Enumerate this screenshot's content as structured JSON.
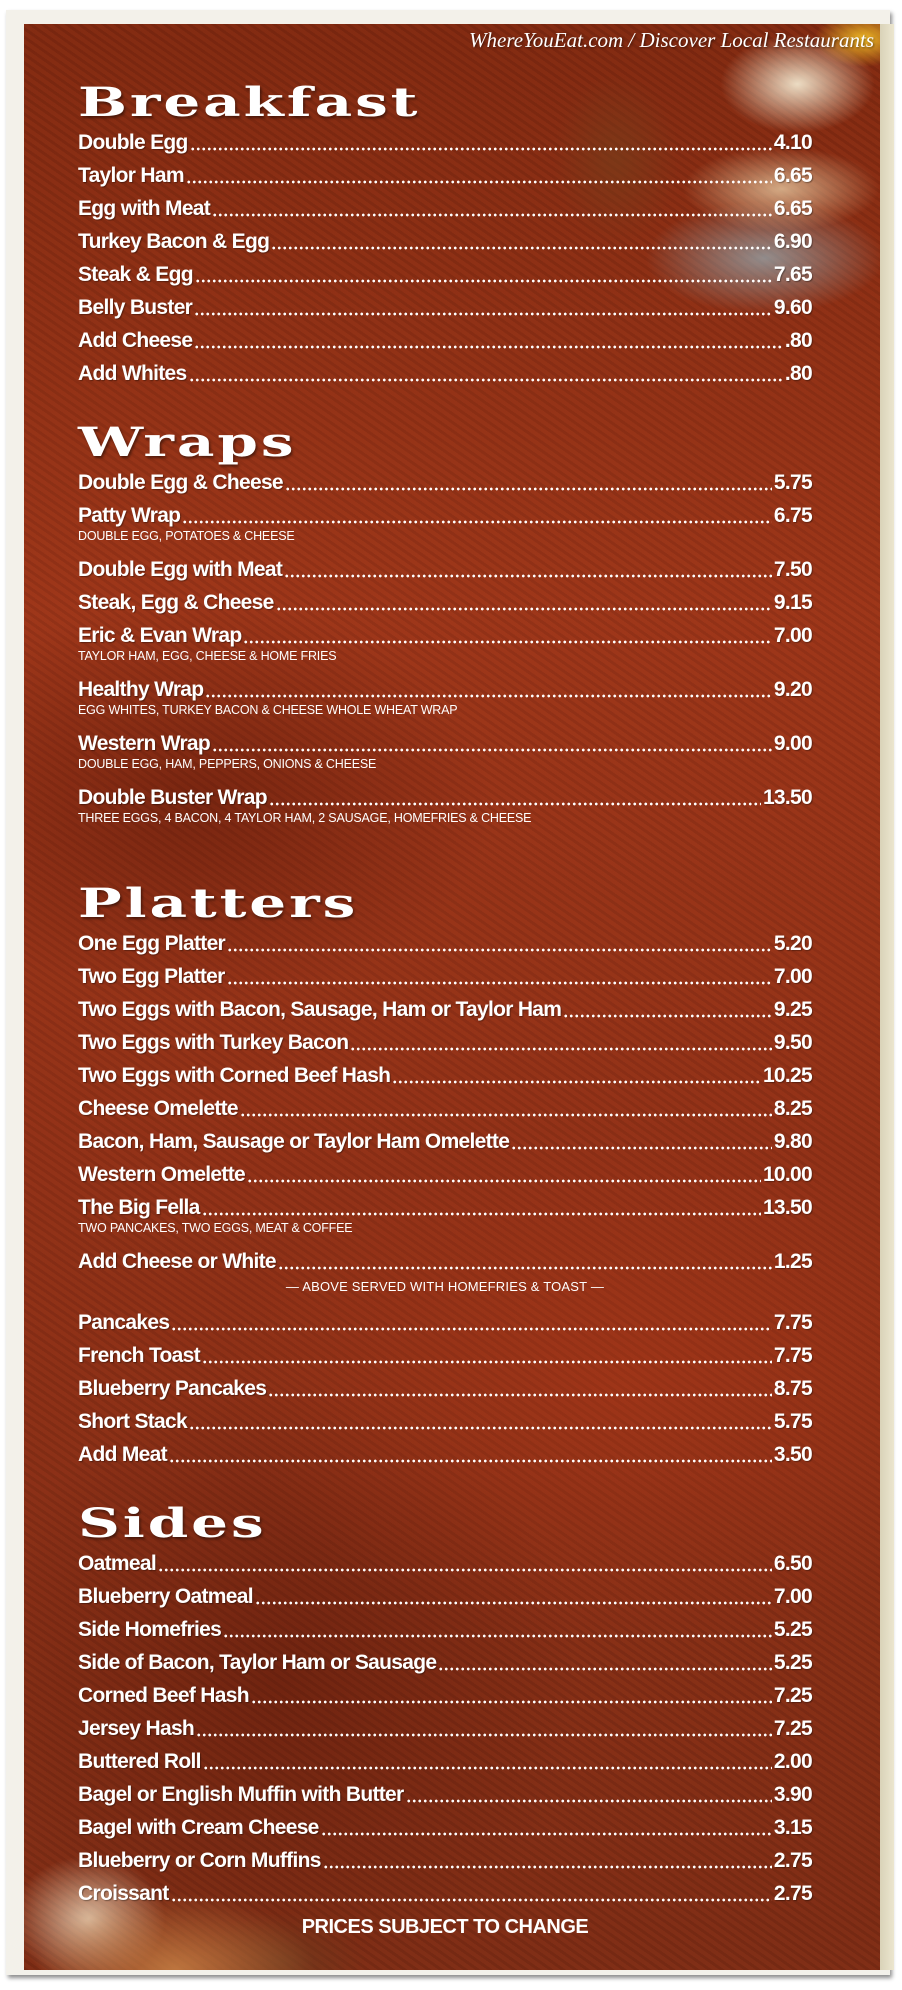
{
  "watermark": "WhereYouEat.com / Discover Local Restaurants",
  "colors": {
    "background": "#8e2f16",
    "text": "#ffffff",
    "paper": "#ece6cf"
  },
  "sections": [
    {
      "title": "Breakfast",
      "items": [
        {
          "name": "Double Egg",
          "price": "4.10"
        },
        {
          "name": "Taylor Ham",
          "price": "6.65"
        },
        {
          "name": "Egg with Meat",
          "price": "6.65"
        },
        {
          "name": "Turkey Bacon & Egg",
          "price": "6.90"
        },
        {
          "name": "Steak & Egg",
          "price": "7.65"
        },
        {
          "name": "Belly Buster",
          "price": "9.60"
        },
        {
          "name": "Add Cheese",
          "price": ".80"
        },
        {
          "name": "Add Whites",
          "price": ".80"
        }
      ]
    },
    {
      "title": "Wraps",
      "items": [
        {
          "name": "Double Egg & Cheese",
          "price": "5.75"
        },
        {
          "name": "Patty Wrap",
          "price": "6.75",
          "desc": "DOUBLE EGG, POTATOES & CHEESE"
        },
        {
          "name": "Double Egg with Meat",
          "price": "7.50"
        },
        {
          "name": "Steak, Egg & Cheese",
          "price": "9.15"
        },
        {
          "name": "Eric & Evan Wrap",
          "price": "7.00",
          "desc": "TAYLOR HAM, EGG, CHEESE & HOME FRIES"
        },
        {
          "name": "Healthy Wrap",
          "price": "9.20",
          "desc": "EGG WHITES, TURKEY BACON & CHEESE WHOLE WHEAT WRAP"
        },
        {
          "name": "Western Wrap",
          "price": "9.00",
          "desc": "DOUBLE EGG, HAM, PEPPERS, ONIONS & CHEESE"
        },
        {
          "name": "Double Buster Wrap",
          "price": "13.50",
          "desc": "THREE EGGS, 4 BACON, 4 TAYLOR HAM, 2 SAUSAGE, HOMEFRIES & CHEESE"
        }
      ]
    },
    {
      "title": "Platters",
      "items": [
        {
          "name": "One Egg Platter",
          "price": "5.20"
        },
        {
          "name": "Two Egg Platter",
          "price": "7.00"
        },
        {
          "name": "Two Eggs with Bacon, Sausage, Ham or Taylor Ham",
          "price": "9.25"
        },
        {
          "name": "Two Eggs with Turkey Bacon",
          "price": "9.50"
        },
        {
          "name": "Two Eggs with Corned Beef Hash",
          "price": "10.25"
        },
        {
          "name": "Cheese Omelette",
          "price": "8.25"
        },
        {
          "name": "Bacon, Ham, Sausage or Taylor Ham Omelette",
          "price": "9.80"
        },
        {
          "name": "Western Omelette",
          "price": "10.00"
        },
        {
          "name": "The Big Fella",
          "price": "13.50",
          "desc": "TWO PANCAKES, TWO EGGS, MEAT & COFFEE"
        },
        {
          "name": "Add Cheese or White",
          "price": "1.25",
          "note": "— ABOVE SERVED WITH HOMEFRIES & TOAST —"
        },
        {
          "name": "Pancakes",
          "price": "7.75"
        },
        {
          "name": "French Toast",
          "price": "7.75"
        },
        {
          "name": "Blueberry Pancakes",
          "price": "8.75"
        },
        {
          "name": "Short Stack",
          "price": "5.75"
        },
        {
          "name": "Add Meat",
          "price": "3.50"
        }
      ]
    },
    {
      "title": "Sides",
      "items": [
        {
          "name": "Oatmeal",
          "price": "6.50"
        },
        {
          "name": "Blueberry Oatmeal",
          "price": "7.00"
        },
        {
          "name": "Side Homefries",
          "price": "5.25"
        },
        {
          "name": "Side of Bacon, Taylor Ham or Sausage",
          "price": "5.25"
        },
        {
          "name": "Corned Beef Hash",
          "price": "7.25"
        },
        {
          "name": "Jersey Hash",
          "price": "7.25"
        },
        {
          "name": "Buttered Roll",
          "price": "2.00"
        },
        {
          "name": "Bagel or English Muffin with Butter",
          "price": "3.90"
        },
        {
          "name": "Bagel with Cream Cheese",
          "price": "3.15"
        },
        {
          "name": "Blueberry or Corn Muffins",
          "price": "2.75"
        },
        {
          "name": "Croissant",
          "price": "2.75"
        }
      ]
    }
  ],
  "footer": "PRICES SUBJECT TO CHANGE"
}
